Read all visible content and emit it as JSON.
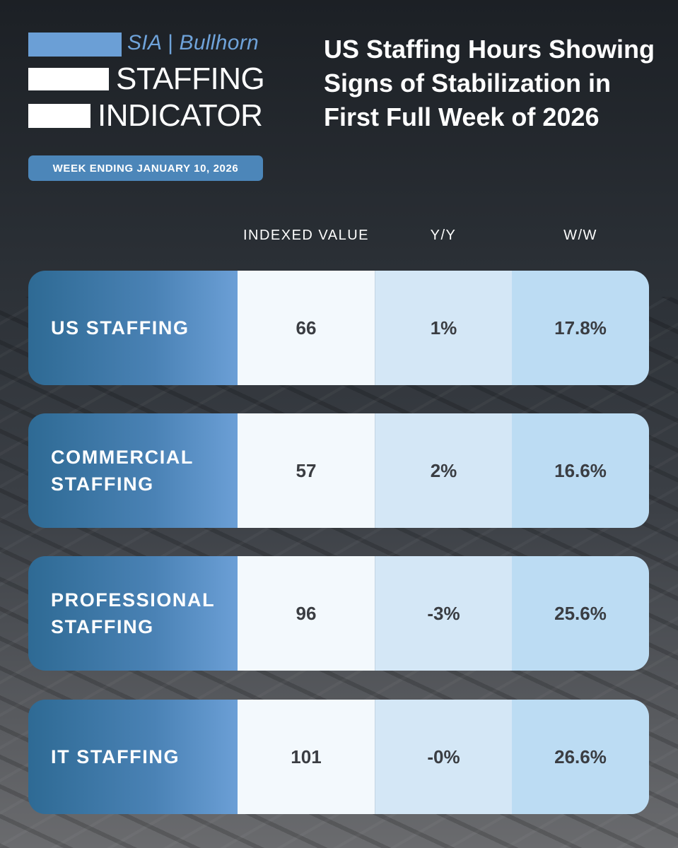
{
  "logo": {
    "brand": "SIA | Bullhorn",
    "line1": "STAFFING",
    "line2": "INDICATOR"
  },
  "week_badge": "WEEK ENDING JANUARY 10, 2026",
  "headline": "US Staffing Hours Showing Signs of Stabilization in First Full Week of 2026",
  "columns": {
    "indexed": "INDEXED VALUE",
    "yy": "Y/Y",
    "ww": "W/W"
  },
  "rows": [
    {
      "label": "US STAFFING",
      "indexed": "66",
      "yy": "1%",
      "ww": "17.8%"
    },
    {
      "label": "COMMERCIAL STAFFING",
      "indexed": "57",
      "yy": "2%",
      "ww": "16.6%"
    },
    {
      "label": "PROFESSIONAL STAFFING",
      "indexed": "96",
      "yy": "-3%",
      "ww": "25.6%"
    },
    {
      "label": "IT STAFFING",
      "indexed": "101",
      "yy": "-0%",
      "ww": "26.6%"
    }
  ],
  "colors": {
    "accent_blue": "#6b9fd6",
    "label_dark": "#2e6a94",
    "badge": "#4c86b9"
  }
}
